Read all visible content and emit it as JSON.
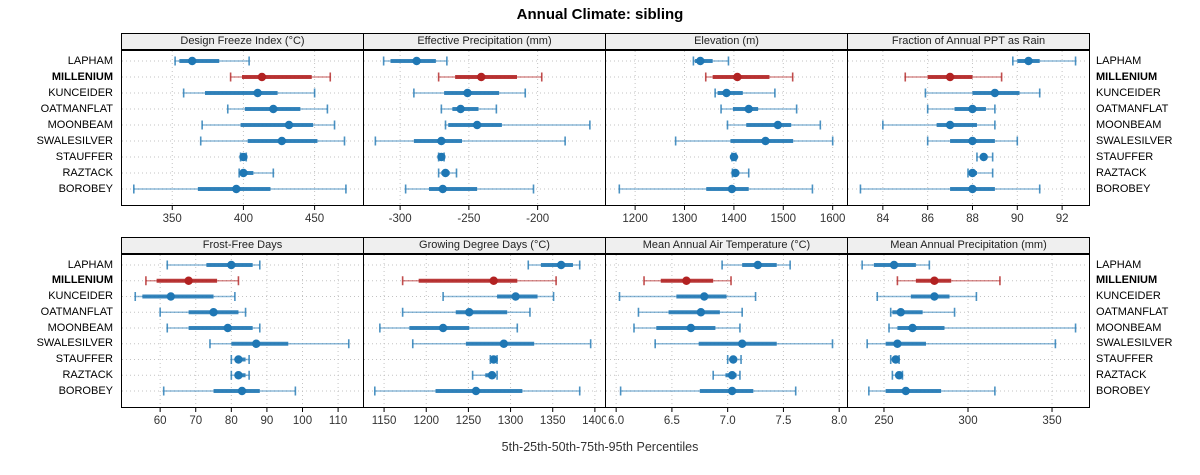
{
  "title": "Annual Climate: sibling",
  "caption": "5th-25th-50th-75th-95th Percentiles",
  "sites": [
    "LAPHAM",
    "MILLENIUM",
    "KUNCEIDER",
    "OATMANFLAT",
    "MOONBEAM",
    "SWALESILVER",
    "STAUFFER",
    "RAZTACK",
    "BOROBEY"
  ],
  "highlight_site": "MILLENIUM",
  "colors": {
    "series": "#1f77b4",
    "highlight": "#b22222",
    "grid": "#c3c3c3",
    "panel_border": "#000000",
    "strip_bg": "#efefef",
    "tick_text": "#333333"
  },
  "chart_data": {
    "type": "interval-dotplot",
    "title": "Annual Climate: sibling",
    "caption": "5th-25th-50th-75th-95th Percentiles",
    "percentiles": [
      "5th",
      "25th",
      "50th",
      "75th",
      "95th"
    ],
    "categories": [
      "LAPHAM",
      "MILLENIUM",
      "KUNCEIDER",
      "OATMANFLAT",
      "MOONBEAM",
      "SWALESILVER",
      "STAUFFER",
      "RAZTACK",
      "BOROBEY"
    ],
    "legend_position": "none",
    "grid": "dotted",
    "panels": [
      {
        "title": "Design Freeze Index (°C)",
        "xlim": [
          314,
          484
        ],
        "tick_values": [
          350,
          400,
          450
        ],
        "tick_labels": [
          "350",
          "400",
          "450"
        ],
        "values": {
          "LAPHAM": [
            352,
            355,
            364,
            383,
            404
          ],
          "MILLENIUM": [
            391,
            399,
            413,
            448,
            461
          ],
          "KUNCEIDER": [
            358,
            373,
            410,
            424,
            450
          ],
          "OATMANFLAT": [
            389,
            401,
            421,
            440,
            459
          ],
          "MOONBEAM": [
            371,
            398,
            432,
            449,
            464
          ],
          "SWALESILVER": [
            370,
            403,
            427,
            452,
            471
          ],
          "STAUFFER": [
            398,
            399,
            400,
            401,
            402
          ],
          "RAZTACK": [
            397,
            398,
            400,
            407,
            421
          ],
          "BOROBEY": [
            323,
            368,
            395,
            419,
            472
          ]
        }
      },
      {
        "title": "Effective Precipitation (mm)",
        "xlim": [
          -327,
          -151
        ],
        "tick_values": [
          -300,
          -250,
          -200
        ],
        "tick_labels": [
          "-300",
          "-250",
          "-200"
        ],
        "values": {
          "LAPHAM": [
            -312,
            -307,
            -288,
            -274,
            -266
          ],
          "MILLENIUM": [
            -272,
            -260,
            -241,
            -215,
            -197
          ],
          "KUNCEIDER": [
            -290,
            -268,
            -251,
            -228,
            -209
          ],
          "OATMANFLAT": [
            -270,
            -262,
            -256,
            -243,
            -230
          ],
          "MOONBEAM": [
            -267,
            -265,
            -244,
            -226,
            -162
          ],
          "SWALESILVER": [
            -318,
            -290,
            -270,
            -255,
            -180
          ],
          "STAUFFER": [
            -272,
            -271,
            -270,
            -269,
            -268
          ],
          "RAZTACK": [
            -272,
            -270,
            -267,
            -264,
            -259
          ],
          "BOROBEY": [
            -296,
            -279,
            -269,
            -244,
            -203
          ]
        }
      },
      {
        "title": "Elevation (m)",
        "xlim": [
          1139,
          1629
        ],
        "tick_values": [
          1200,
          1300,
          1400,
          1500,
          1600
        ],
        "tick_labels": [
          "1200",
          "1300",
          "1400",
          "1500",
          "1600"
        ],
        "values": {
          "LAPHAM": [
            1318,
            1321,
            1332,
            1357,
            1389
          ],
          "MILLENIUM": [
            1343,
            1357,
            1407,
            1472,
            1519
          ],
          "KUNCEIDER": [
            1362,
            1367,
            1385,
            1418,
            1483
          ],
          "OATMANFLAT": [
            1374,
            1398,
            1430,
            1449,
            1527
          ],
          "MOONBEAM": [
            1387,
            1425,
            1489,
            1516,
            1575
          ],
          "SWALESILVER": [
            1282,
            1393,
            1464,
            1520,
            1600
          ],
          "STAUFFER": [
            1396,
            1398,
            1400,
            1402,
            1404
          ],
          "RAZTACK": [
            1397,
            1399,
            1403,
            1410,
            1430
          ],
          "BOROBEY": [
            1168,
            1344,
            1396,
            1430,
            1559
          ]
        }
      },
      {
        "title": "Fraction of Annual PPT as Rain",
        "xlim": [
          82.4,
          93.2
        ],
        "tick_values": [
          84,
          86,
          88,
          90,
          92
        ],
        "tick_labels": [
          "84",
          "86",
          "88",
          "90",
          "92"
        ],
        "values": {
          "LAPHAM": [
            89.8,
            90.0,
            90.5,
            91.0,
            92.6
          ],
          "MILLENIUM": [
            85.0,
            86.0,
            87.0,
            88.0,
            89.3
          ],
          "KUNCEIDER": [
            85.9,
            88.0,
            89.0,
            90.1,
            91.0
          ],
          "OATMANFLAT": [
            86.0,
            87.2,
            88.0,
            88.6,
            89.0
          ],
          "MOONBEAM": [
            84.0,
            86.4,
            87.0,
            88.2,
            89.0
          ],
          "SWALESILVER": [
            86.0,
            87.0,
            88.0,
            89.0,
            90.0
          ],
          "STAUFFER": [
            88.2,
            88.4,
            88.5,
            88.6,
            88.9
          ],
          "RAZTACK": [
            87.8,
            87.9,
            88.0,
            88.2,
            88.9
          ],
          "BOROBEY": [
            83.0,
            87.0,
            88.0,
            89.0,
            91.0
          ]
        }
      },
      {
        "title": "Frost-Free Days",
        "xlim": [
          49,
          117
        ],
        "tick_values": [
          60,
          70,
          80,
          90,
          100,
          110
        ],
        "tick_labels": [
          "60",
          "70",
          "80",
          "90",
          "100",
          "110"
        ],
        "values": {
          "LAPHAM": [
            62,
            73,
            80,
            86,
            88
          ],
          "MILLENIUM": [
            56,
            59,
            68,
            76,
            82
          ],
          "KUNCEIDER": [
            53,
            55,
            63,
            75,
            81
          ],
          "OATMANFLAT": [
            60,
            68,
            75,
            82,
            84
          ],
          "MOONBEAM": [
            62,
            68,
            79,
            86,
            88
          ],
          "SWALESILVER": [
            74,
            80,
            87,
            96,
            113
          ],
          "STAUFFER": [
            80,
            81,
            82,
            84,
            85
          ],
          "RAZTACK": [
            80,
            81,
            82,
            84,
            85
          ],
          "BOROBEY": [
            61,
            75,
            83,
            88,
            98
          ]
        }
      },
      {
        "title": "Growing Degree Days (°C)",
        "xlim": [
          1125,
          1412
        ],
        "tick_values": [
          1150,
          1200,
          1250,
          1300,
          1350,
          1400
        ],
        "tick_labels": [
          "1150",
          "1200",
          "1250",
          "1300",
          "1350",
          "1400"
        ],
        "values": {
          "LAPHAM": [
            1321,
            1336,
            1360,
            1374,
            1382
          ],
          "MILLENIUM": [
            1172,
            1191,
            1280,
            1308,
            1354
          ],
          "KUNCEIDER": [
            1220,
            1284,
            1306,
            1332,
            1351
          ],
          "OATMANFLAT": [
            1172,
            1235,
            1251,
            1296,
            1323
          ],
          "MOONBEAM": [
            1145,
            1180,
            1220,
            1251,
            1308
          ],
          "SWALESILVER": [
            1184,
            1247,
            1292,
            1328,
            1395
          ],
          "STAUFFER": [
            1276,
            1278,
            1280,
            1282,
            1284
          ],
          "RAZTACK": [
            1255,
            1270,
            1278,
            1281,
            1284
          ],
          "BOROBEY": [
            1139,
            1211,
            1259,
            1314,
            1382
          ]
        }
      },
      {
        "title": "Mean Annual Air Temperature (°C)",
        "xlim": [
          5.9,
          8.07
        ],
        "tick_values": [
          6.0,
          6.5,
          7.0,
          7.5,
          8.0
        ],
        "tick_labels": [
          "6.0",
          "6.5",
          "7.0",
          "7.5",
          "8.0"
        ],
        "values": {
          "LAPHAM": [
            6.95,
            7.13,
            7.27,
            7.44,
            7.56
          ],
          "MILLENIUM": [
            6.25,
            6.4,
            6.63,
            6.87,
            7.03
          ],
          "KUNCEIDER": [
            6.03,
            6.54,
            6.79,
            6.99,
            7.25
          ],
          "OATMANFLAT": [
            6.2,
            6.47,
            6.76,
            6.93,
            7.13
          ],
          "MOONBEAM": [
            6.16,
            6.36,
            6.67,
            6.89,
            7.11
          ],
          "SWALESILVER": [
            6.35,
            6.74,
            7.13,
            7.44,
            7.94
          ],
          "STAUFFER": [
            7.0,
            7.03,
            7.05,
            7.08,
            7.12
          ],
          "RAZTACK": [
            6.87,
            6.98,
            7.04,
            7.08,
            7.11
          ],
          "BOROBEY": [
            6.04,
            6.75,
            7.04,
            7.23,
            7.61
          ]
        }
      },
      {
        "title": "Mean Annual Precipitation (mm)",
        "xlim": [
          228,
          372
        ],
        "tick_values": [
          250,
          300,
          350
        ],
        "tick_labels": [
          "250",
          "300",
          "350"
        ],
        "values": {
          "LAPHAM": [
            237,
            244,
            256,
            269,
            277
          ],
          "MILLENIUM": [
            258,
            269,
            280,
            290,
            319
          ],
          "KUNCEIDER": [
            246,
            266,
            280,
            289,
            305
          ],
          "OATMANFLAT": [
            254,
            255,
            260,
            273,
            292
          ],
          "MOONBEAM": [
            253,
            258,
            267,
            286,
            364
          ],
          "SWALESILVER": [
            240,
            251,
            258,
            275,
            352
          ],
          "STAUFFER": [
            254,
            256,
            257,
            258,
            259
          ],
          "RAZTACK": [
            255,
            257,
            259,
            260,
            261
          ],
          "BOROBEY": [
            241,
            251,
            263,
            284,
            316
          ]
        }
      }
    ]
  }
}
